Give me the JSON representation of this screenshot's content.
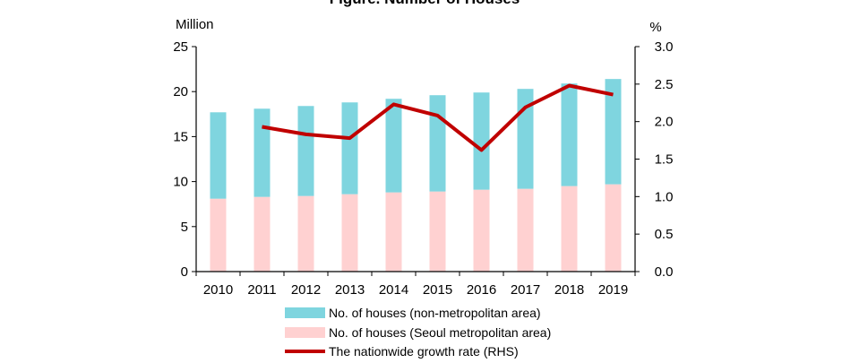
{
  "chart_data": {
    "type": "bar",
    "title": "Figure. Number of Houses",
    "categories": [
      "2010",
      "2011",
      "2012",
      "2013",
      "2014",
      "2015",
      "2016",
      "2017",
      "2018",
      "2019"
    ],
    "series": [
      {
        "name": "No. of houses (Seoul metropolitan area)",
        "type": "bar-stacked",
        "axis": "left",
        "color": "#FFD1D1",
        "values": [
          8.1,
          8.3,
          8.4,
          8.6,
          8.8,
          8.9,
          9.1,
          9.2,
          9.5,
          9.7
        ]
      },
      {
        "name": "No. of houses (non-metropolitan area)",
        "type": "bar-stacked",
        "axis": "left",
        "color": "#7FD5DF",
        "values": [
          9.6,
          9.8,
          10.0,
          10.2,
          10.4,
          10.7,
          10.8,
          11.1,
          11.4,
          11.7
        ]
      },
      {
        "name": "The nationwide growth rate (RHS)",
        "type": "line",
        "axis": "right",
        "color": "#C00000",
        "values": [
          null,
          1.93,
          1.83,
          1.78,
          2.23,
          2.08,
          1.62,
          2.19,
          2.48,
          2.36
        ]
      }
    ],
    "left_axis": {
      "label": "Million",
      "range": [
        0,
        25
      ],
      "ticks": [
        "0",
        "5",
        "10",
        "15",
        "20",
        "25"
      ]
    },
    "right_axis": {
      "label": "%",
      "range": [
        0,
        3.0
      ],
      "ticks": [
        "0.0",
        "0.5",
        "1.0",
        "1.5",
        "2.0",
        "2.5",
        "3.0"
      ]
    },
    "legend": [
      "No. of houses (non-metropolitan area)",
      "No. of houses (Seoul metropolitan area)",
      "The nationwide growth rate (RHS)"
    ],
    "grid": false,
    "legend_position": "bottom"
  }
}
